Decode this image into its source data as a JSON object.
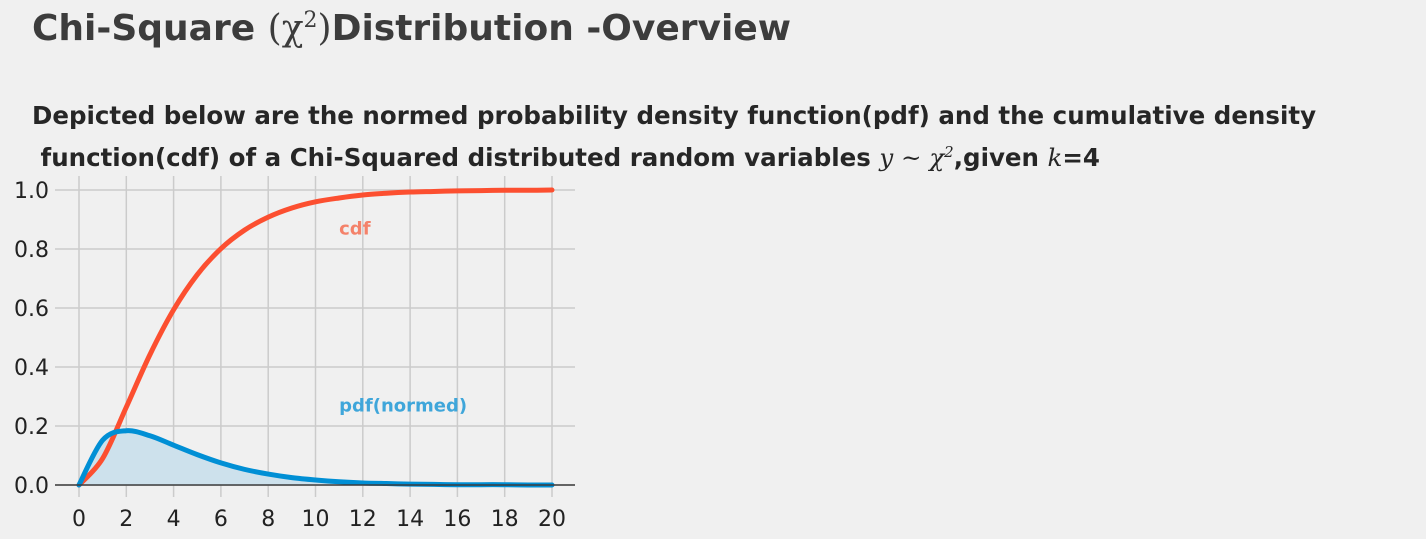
{
  "title": {
    "text_before": "Chi-Square ",
    "symbol": "(χ",
    "sup": "2",
    "symbol_close": ")",
    "text_after": "Distribution -Overview"
  },
  "subtitle": {
    "line1": "Depicted below are the normed probability density function(pdf) and the cumulative density",
    "line2_before": " function(cdf) of a Chi-Squared distributed random variables ",
    "line2_math": "y ~ χ",
    "line2_sup": "2",
    "line2_after_comma": ",given ",
    "line2_k": "k",
    "line2_end": "=4"
  },
  "chart_data": {
    "type": "line",
    "distribution": "chi-square",
    "degrees_of_freedom": 4,
    "xlim": [
      0,
      20
    ],
    "ylim": [
      0,
      1.0
    ],
    "x_ticks": [
      0,
      2,
      4,
      6,
      8,
      10,
      12,
      14,
      16,
      18,
      20
    ],
    "y_ticks": [
      0.0,
      0.2,
      0.4,
      0.6,
      0.8,
      1.0
    ],
    "y_tick_labels": [
      "0.0",
      "0.2",
      "0.4",
      "0.6",
      "0.8",
      "1.0"
    ],
    "grid": true,
    "x": [
      0,
      1,
      2,
      3,
      4,
      5,
      6,
      7,
      8,
      9,
      10,
      11,
      12,
      13,
      14,
      15,
      16,
      17,
      18,
      19,
      20
    ],
    "series": [
      {
        "name": "cdf",
        "color": "#fc4f30",
        "values": [
          0.0,
          0.09,
          0.264,
          0.442,
          0.594,
          0.713,
          0.801,
          0.864,
          0.908,
          0.939,
          0.96,
          0.973,
          0.983,
          0.989,
          0.993,
          0.995,
          0.997,
          0.998,
          0.999,
          0.999,
          1.0
        ]
      },
      {
        "name": "pdf(normed)",
        "color": "#008fd5",
        "fill": true,
        "values": [
          0.0,
          0.152,
          0.184,
          0.167,
          0.135,
          0.103,
          0.075,
          0.053,
          0.037,
          0.025,
          0.017,
          0.011,
          0.007,
          0.005,
          0.003,
          0.002,
          0.001,
          0.001,
          0.001,
          0.0,
          0.0
        ]
      }
    ],
    "annotations": [
      {
        "text": "cdf",
        "x": 11,
        "y": 0.85,
        "color": "#f4826a"
      },
      {
        "text": "pdf(normed)",
        "x": 11,
        "y": 0.25,
        "color": "#3fa6da"
      }
    ]
  }
}
